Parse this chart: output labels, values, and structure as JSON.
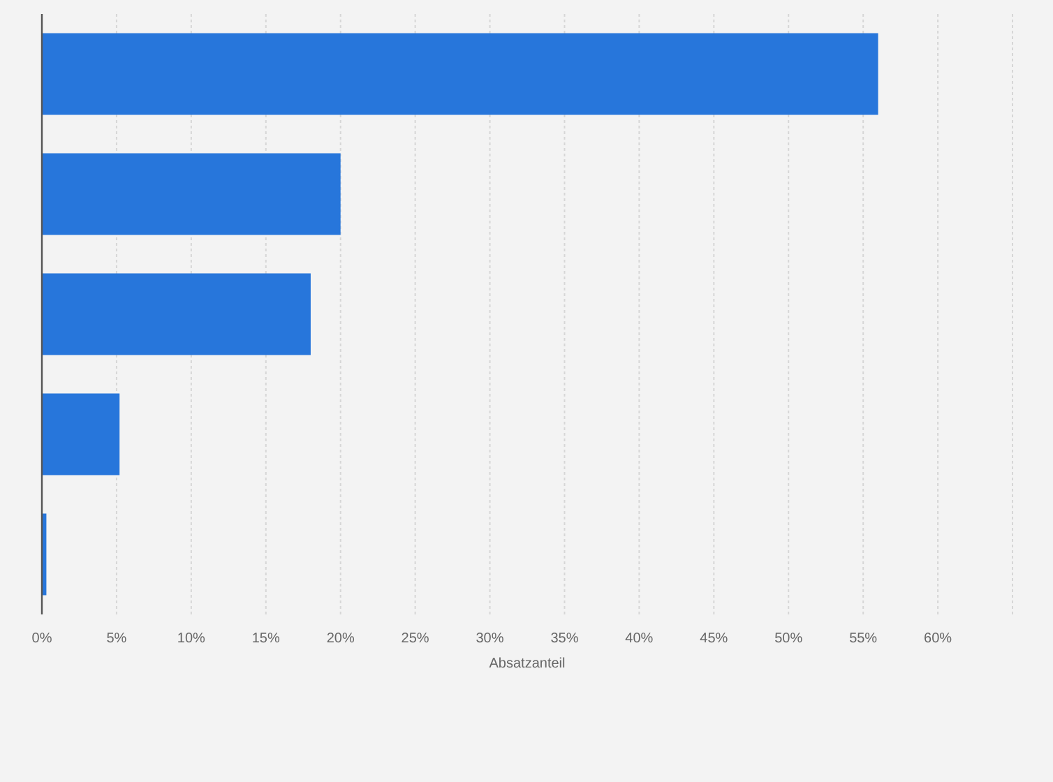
{
  "chart_data": {
    "type": "bar",
    "orientation": "horizontal",
    "categories": [
      null,
      null,
      null,
      null,
      null
    ],
    "values": [
      56,
      20,
      18,
      5.2,
      0.3
    ],
    "color": "#2776db",
    "xlabel": "Absatzanteil",
    "xlim": [
      0,
      65
    ],
    "xticks": [
      {
        "value": 0,
        "label": "0%"
      },
      {
        "value": 5,
        "label": "5%"
      },
      {
        "value": 10,
        "label": "10%"
      },
      {
        "value": 15,
        "label": "15%"
      },
      {
        "value": 20,
        "label": "20%"
      },
      {
        "value": 25,
        "label": "25%"
      },
      {
        "value": 30,
        "label": "30%"
      },
      {
        "value": 35,
        "label": "35%"
      },
      {
        "value": 40,
        "label": "40%"
      },
      {
        "value": 45,
        "label": "45%"
      },
      {
        "value": 50,
        "label": "50%"
      },
      {
        "value": 55,
        "label": "55%"
      },
      {
        "value": 60,
        "label": "60%"
      },
      {
        "value": 65,
        "label": null
      }
    ],
    "grid": "x"
  }
}
